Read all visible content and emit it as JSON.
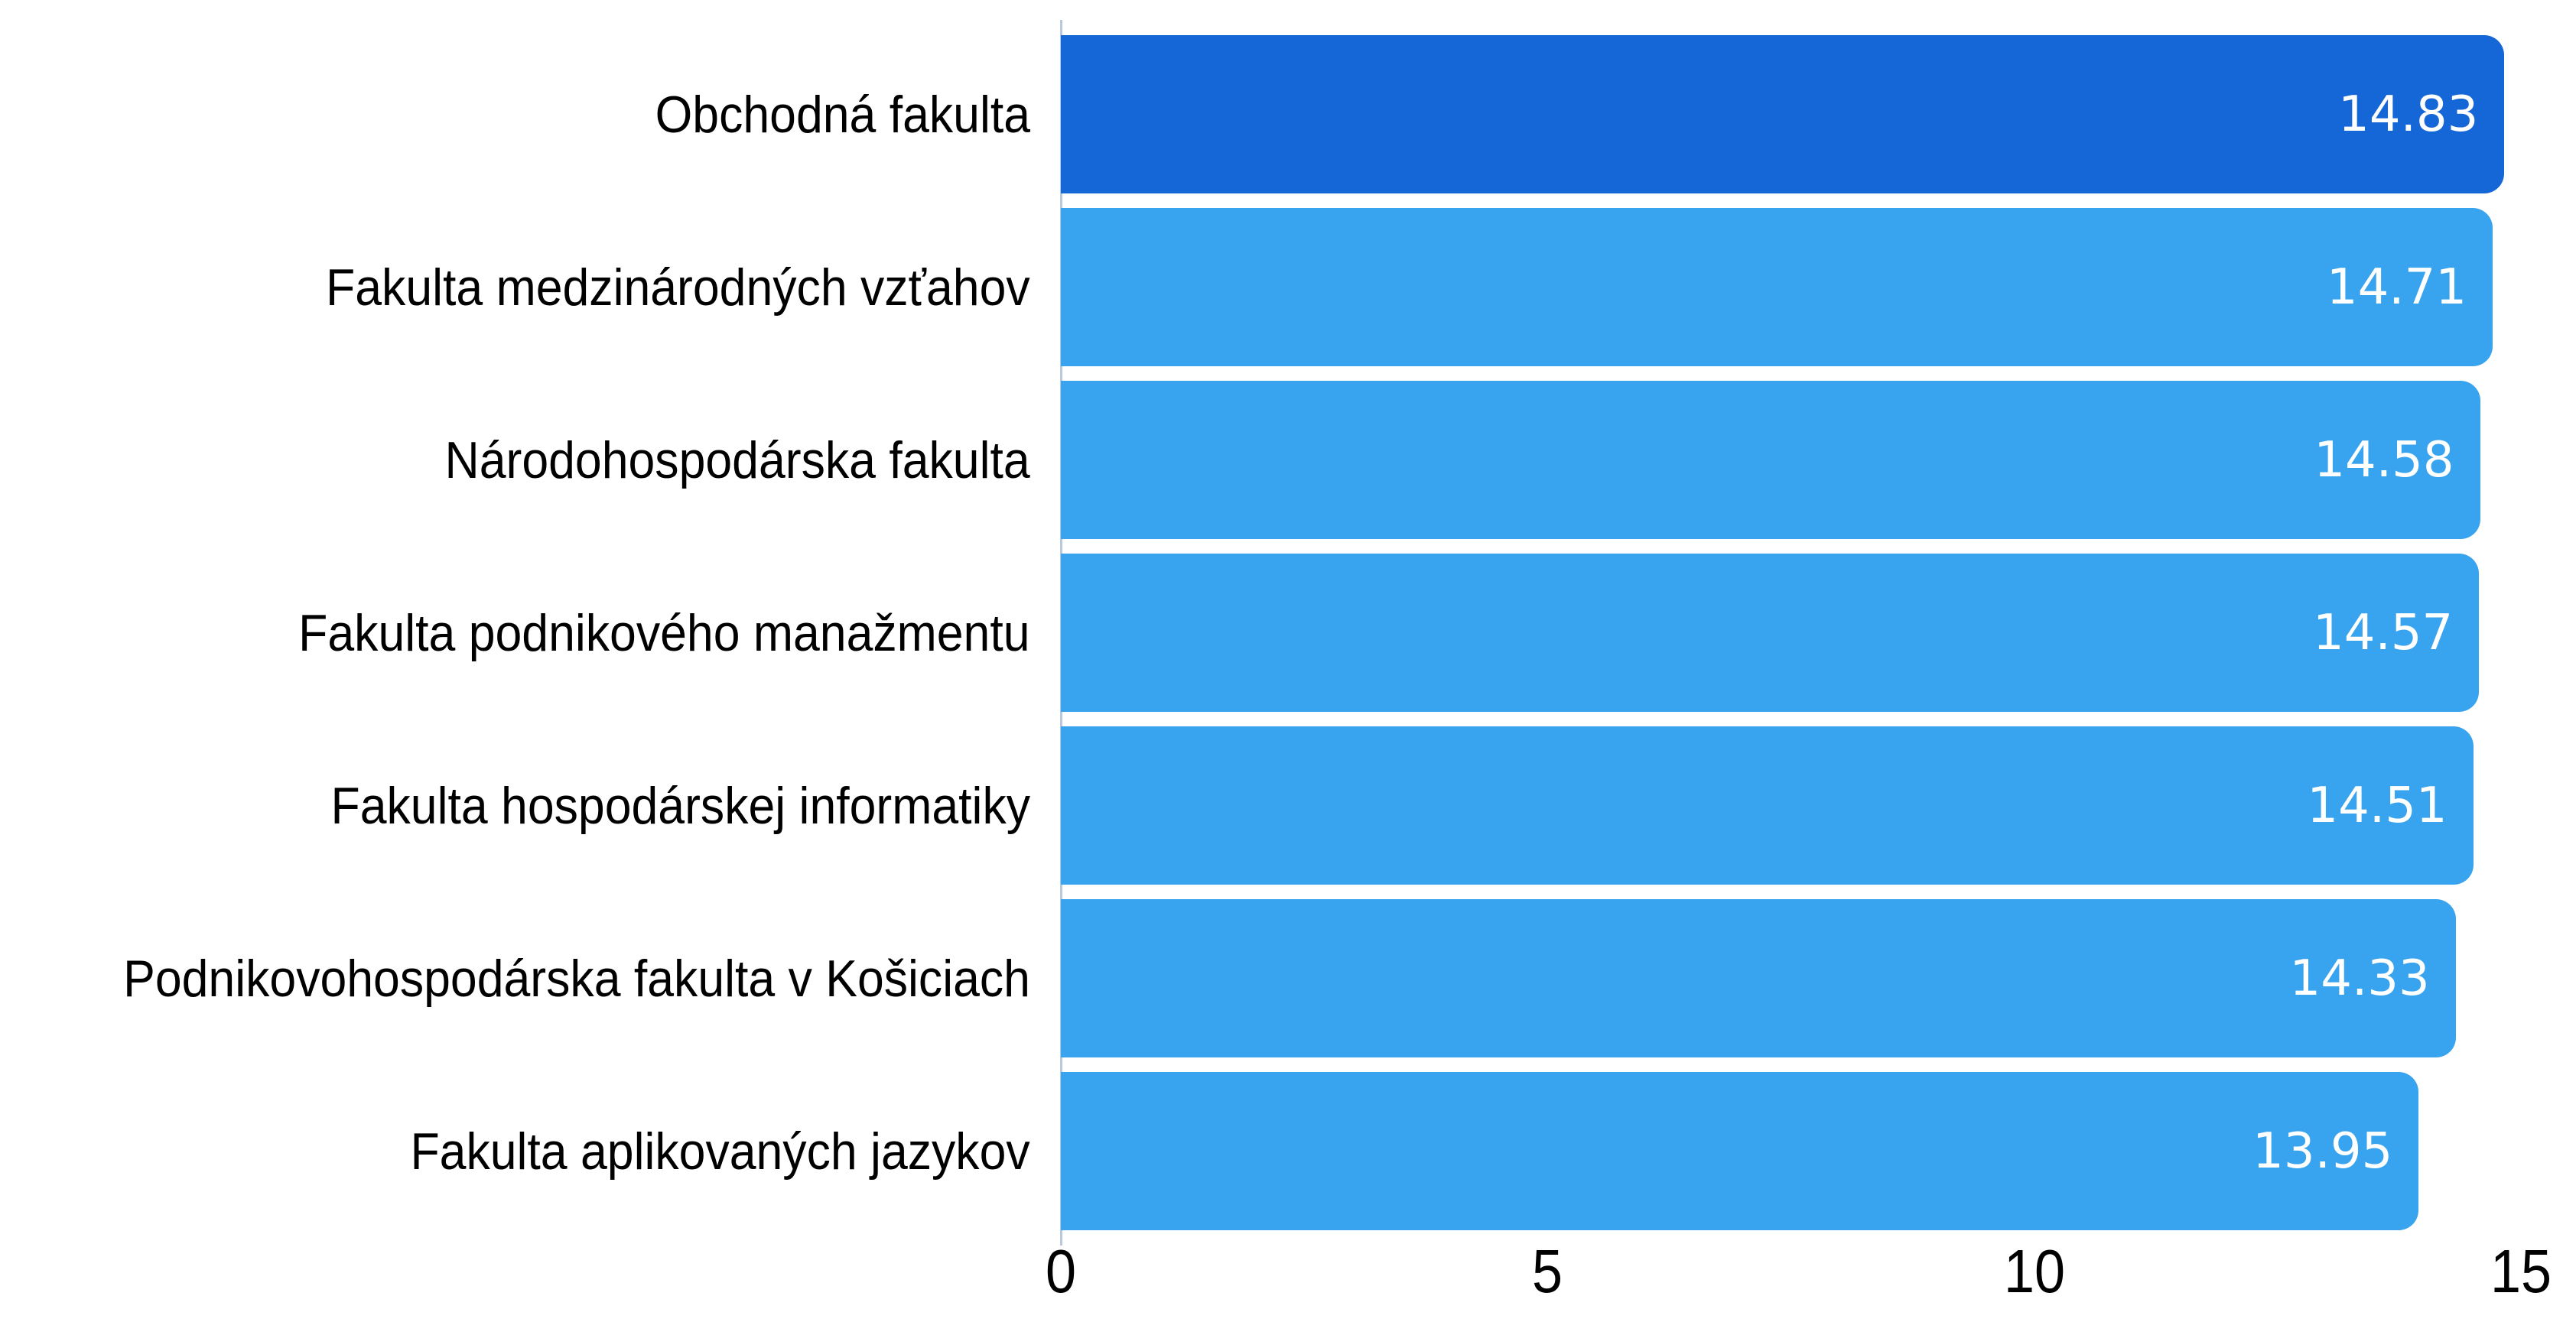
{
  "chart_data": {
    "type": "bar",
    "orientation": "horizontal",
    "title": "",
    "xlabel": "",
    "ylabel": "",
    "categories": [
      "Obchodná fakulta",
      "Fakulta medzinárodných vzťahov",
      "Národohospodárska fakulta",
      "Fakulta podnikového manažmentu",
      "Fakulta hospodárskej informatiky",
      "Podnikovohospodárska fakulta v Košiciach",
      "Fakulta aplikovaných jazykov"
    ],
    "values": [
      14.83,
      14.71,
      14.58,
      14.57,
      14.51,
      14.33,
      13.95
    ],
    "value_labels": [
      "14.83",
      "14.71",
      "14.58",
      "14.57",
      "14.51",
      "14.33",
      "13.95"
    ],
    "xlim": [
      0,
      15
    ],
    "x_ticks": [
      0,
      5,
      10,
      15
    ],
    "x_tick_labels": [
      "0",
      "5",
      "10",
      "15"
    ],
    "grid": false,
    "legend": false,
    "highlight_index": 0,
    "colors": {
      "highlight_bar": "#1566d6",
      "default_bar": "#38a3ee",
      "value_text": "#ffffff",
      "label_text": "#000000",
      "axis_text": "#000000",
      "axis_line": "#b9c9dd",
      "background": "#ffffff"
    }
  }
}
